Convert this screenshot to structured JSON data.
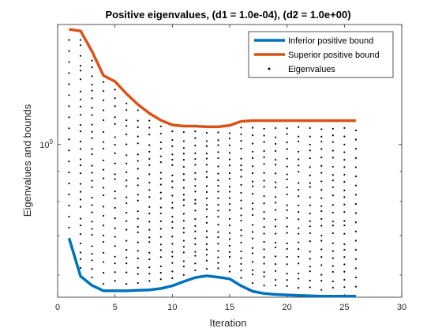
{
  "chart_data": {
    "type": "line",
    "title": "Positive eigenvalues, (d1 = 1.0e-04), (d2 = 1.0e+00)",
    "xlabel": "Iteration",
    "ylabel": "Eigenvalues and bounds",
    "xlim": [
      0,
      30
    ],
    "ylim": [
      0.55,
      1.6
    ],
    "yscale": "log",
    "xticks": [
      0,
      5,
      10,
      15,
      20,
      25,
      30
    ],
    "yticks": [
      {
        "value": 1.0,
        "label": "10^0"
      }
    ],
    "grid": false,
    "legend_position": "top-right",
    "series": [
      {
        "name": "Inferior positive bound",
        "color": "#0072BD",
        "x": [
          1,
          2,
          3,
          4,
          5,
          6,
          7,
          8,
          9,
          10,
          11,
          12,
          13,
          14,
          15,
          16,
          17,
          18,
          19,
          20,
          21,
          22,
          23,
          24,
          25,
          26
        ],
        "y": [
          0.693,
          0.597,
          0.576,
          0.564,
          0.564,
          0.564,
          0.565,
          0.566,
          0.569,
          0.575,
          0.585,
          0.594,
          0.598,
          0.595,
          0.591,
          0.575,
          0.563,
          0.558,
          0.556,
          0.555,
          0.554,
          0.553,
          0.552,
          0.552,
          0.552,
          0.552
        ]
      },
      {
        "name": "Superior positive bound",
        "color": "#D95319",
        "x": [
          1,
          2,
          3,
          4,
          5,
          6,
          7,
          8,
          9,
          10,
          11,
          12,
          13,
          14,
          15,
          16,
          17,
          18,
          19,
          20,
          21,
          22,
          23,
          24,
          25,
          26
        ],
        "y": [
          1.57,
          1.56,
          1.44,
          1.31,
          1.28,
          1.22,
          1.17,
          1.13,
          1.1,
          1.08,
          1.075,
          1.075,
          1.072,
          1.072,
          1.078,
          1.095,
          1.098,
          1.098,
          1.098,
          1.098,
          1.098,
          1.098,
          1.098,
          1.098,
          1.098,
          1.098
        ]
      },
      {
        "name": "Eigenvalues",
        "color": "#000000",
        "type": "scatter",
        "x": [
          2,
          3,
          4,
          5,
          6,
          7,
          8,
          9,
          10,
          11,
          12,
          13,
          14,
          15,
          16,
          17,
          18,
          19,
          20,
          21,
          22,
          23,
          24,
          25
        ],
        "y_range": [
          0.56,
          1.25
        ],
        "note": "many eigenvalues per iteration"
      }
    ]
  }
}
